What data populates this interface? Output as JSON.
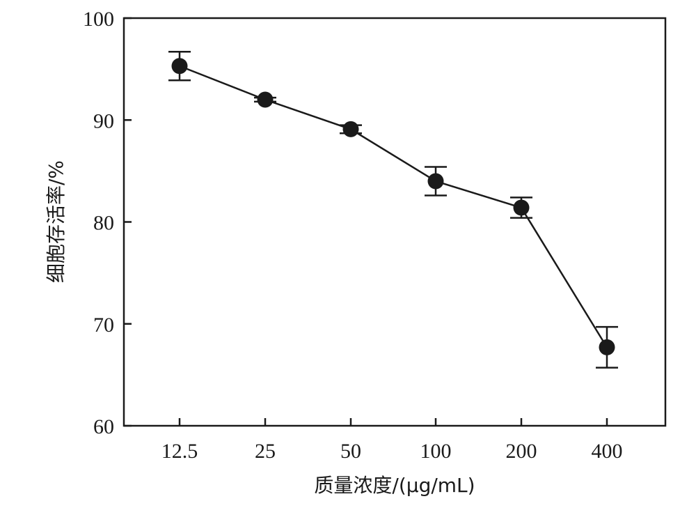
{
  "chart_data": {
    "type": "line",
    "xlabel": "质量浓度/(μg/mL)",
    "ylabel": "细胞存活率/%",
    "categories": [
      "12.5",
      "25",
      "50",
      "100",
      "200",
      "400"
    ],
    "ylim": [
      60,
      100
    ],
    "yticks": [
      "60",
      "70",
      "80",
      "90",
      "100"
    ],
    "grid": false,
    "series": [
      {
        "values": [
          95.3,
          92.0,
          89.1,
          84.0,
          81.4,
          67.7
        ],
        "errors": [
          1.4,
          0.2,
          0.4,
          1.4,
          1.0,
          2.0
        ]
      }
    ],
    "colors": {
      "line": "#1a1a1a",
      "marker": "#1a1a1a"
    }
  }
}
